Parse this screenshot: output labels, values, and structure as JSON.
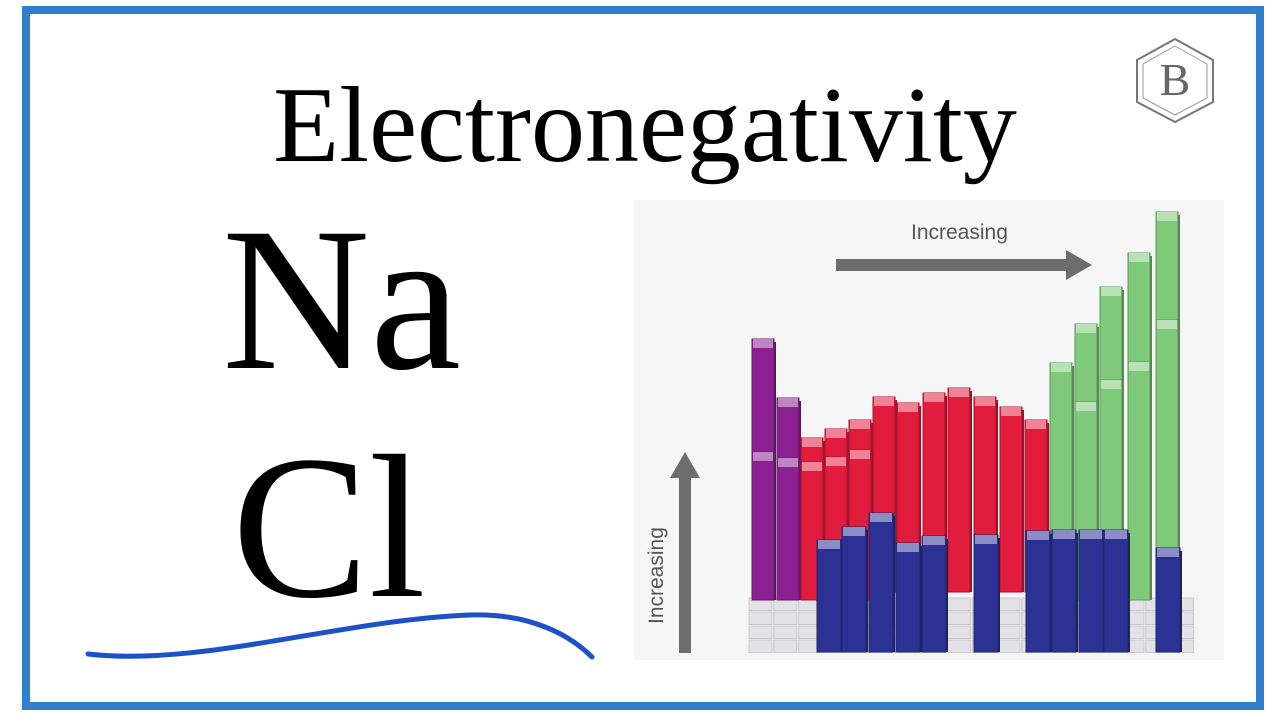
{
  "title": "Electronegativity",
  "elements": {
    "first": "Na",
    "second": "Cl"
  },
  "logo": {
    "letter": "B",
    "icon": "benzene-hexagon-icon"
  },
  "chart": {
    "horizontal_label": "Increasing",
    "vertical_label": "Increasing"
  },
  "colors": {
    "frame": "#2f7fcd",
    "underline": "#1c52c8",
    "s_block": "#8b2191",
    "d_block": "#e21c3c",
    "p_block": "#7fc97a",
    "f_block": "#2b3294",
    "arrow": "#6d6d6d"
  }
}
